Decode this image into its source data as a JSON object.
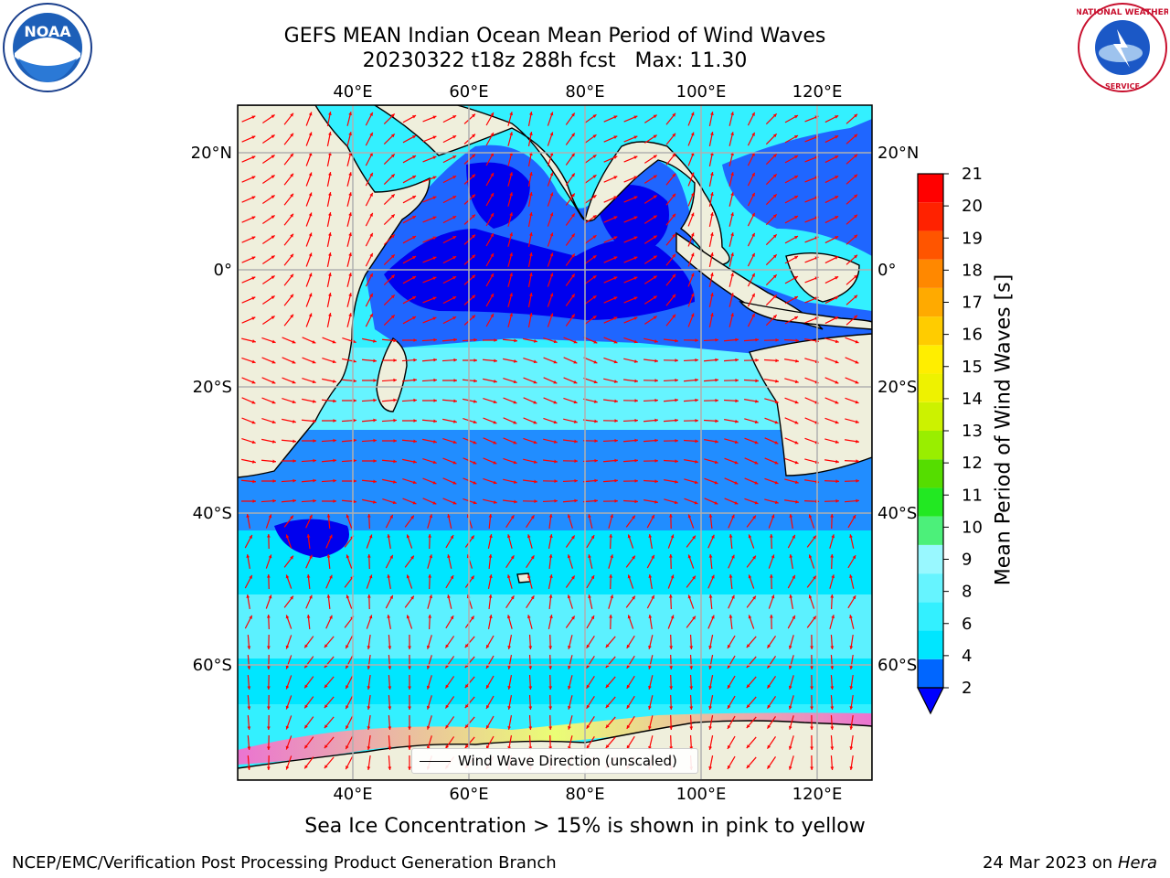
{
  "title": {
    "line1": "GEFS MEAN Indian Ocean Mean Period of Wind Waves",
    "line2": "20230322 t18z 288h fcst   Max: 11.30"
  },
  "map": {
    "extent": {
      "lon": [
        20,
        130
      ],
      "lat": [
        -72,
        28
      ]
    },
    "lon_ticks": [
      {
        "value": 40,
        "label": "40°E"
      },
      {
        "value": 60,
        "label": "60°E"
      },
      {
        "value": 80,
        "label": "80°E"
      },
      {
        "value": 100,
        "label": "100°E"
      },
      {
        "value": 120,
        "label": "120°E"
      }
    ],
    "lat_ticks": [
      {
        "value": 20,
        "label": "20°N"
      },
      {
        "value": 0,
        "label": "0°"
      },
      {
        "value": -20,
        "label": "20°S"
      },
      {
        "value": -40,
        "label": "40°S"
      },
      {
        "value": -60,
        "label": "60°S"
      }
    ],
    "gridlines": true,
    "land_color": "#efefdc",
    "arrow_color": "#ff0000"
  },
  "colorbar": {
    "label": "Mean Period of Wind Waves [s]",
    "ticks": [
      "2",
      "4",
      "6",
      "8",
      "9",
      "10",
      "11",
      "12",
      "13",
      "14",
      "15",
      "16",
      "17",
      "18",
      "19",
      "20",
      "21"
    ],
    "colors": [
      "#0066ff",
      "#00e6ff",
      "#33f0ff",
      "#66f4ff",
      "#99f8ff",
      "#4cf07a",
      "#22e822",
      "#55dd00",
      "#99ee00",
      "#ccf200",
      "#eef200",
      "#ffee00",
      "#ffcc00",
      "#ffaa00",
      "#ff8800",
      "#ff5500",
      "#ff2200",
      "#ff0000"
    ],
    "under_color": "#0000ff"
  },
  "legend": {
    "label": "Wind Wave Direction (unscaled)"
  },
  "footnote": "Sea Ice Concentration > 15% is shown in pink to yellow",
  "credit": "NCEP/EMC/Verification Post Processing Product Generation Branch",
  "stamp": {
    "date": "24 Mar 2023 on",
    "host": "Hera"
  },
  "logos": {
    "left": "NOAA",
    "right": "NATIONAL WEATHER SERVICE"
  }
}
